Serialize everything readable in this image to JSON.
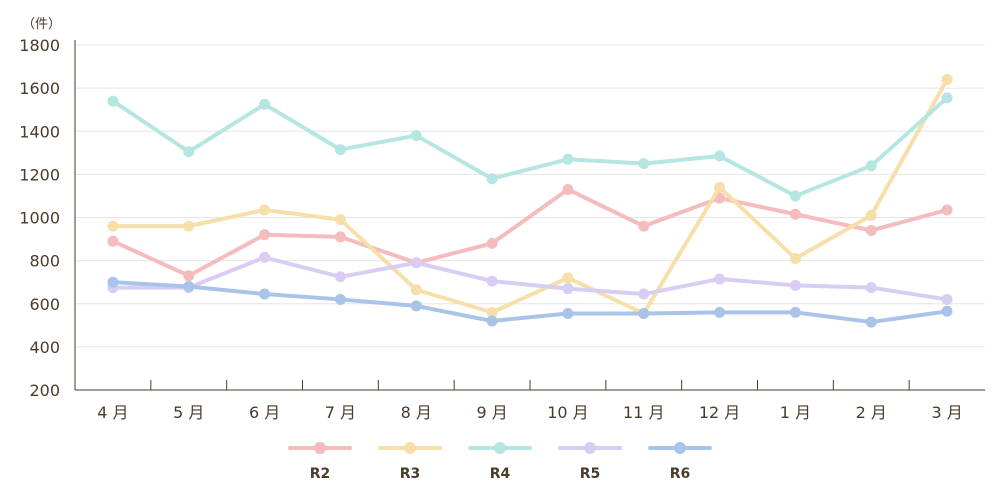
{
  "chart_data": {
    "type": "line",
    "unit_label": "（件）",
    "categories": [
      "4 月",
      "5 月",
      "6 月",
      "7 月",
      "8 月",
      "9 月",
      "10 月",
      "11 月",
      "12 月",
      "1 月",
      "2 月",
      "3 月"
    ],
    "ylim": [
      200,
      1800
    ],
    "yticks": [
      200,
      400,
      600,
      800,
      1000,
      1200,
      1400,
      1600,
      1800
    ],
    "grid": true,
    "legend_position": "bottom",
    "series": [
      {
        "name": "R2",
        "color": "#f4bcbc",
        "values": [
          890,
          730,
          920,
          910,
          790,
          880,
          1130,
          960,
          1090,
          1015,
          940,
          1035
        ]
      },
      {
        "name": "R3",
        "color": "#f6dfa9",
        "values": [
          960,
          960,
          1035,
          990,
          665,
          560,
          720,
          555,
          1140,
          810,
          1010,
          1640
        ]
      },
      {
        "name": "R4",
        "color": "#b6e6e2",
        "values": [
          1540,
          1305,
          1525,
          1315,
          1380,
          1180,
          1270,
          1250,
          1285,
          1100,
          1240,
          1555
        ]
      },
      {
        "name": "R5",
        "color": "#d9cdf4",
        "values": [
          675,
          675,
          815,
          725,
          790,
          705,
          670,
          645,
          715,
          685,
          675,
          620
        ]
      },
      {
        "name": "R6",
        "color": "#a9c4e8",
        "values": [
          700,
          680,
          645,
          620,
          590,
          520,
          555,
          555,
          560,
          560,
          515,
          565
        ]
      }
    ]
  }
}
